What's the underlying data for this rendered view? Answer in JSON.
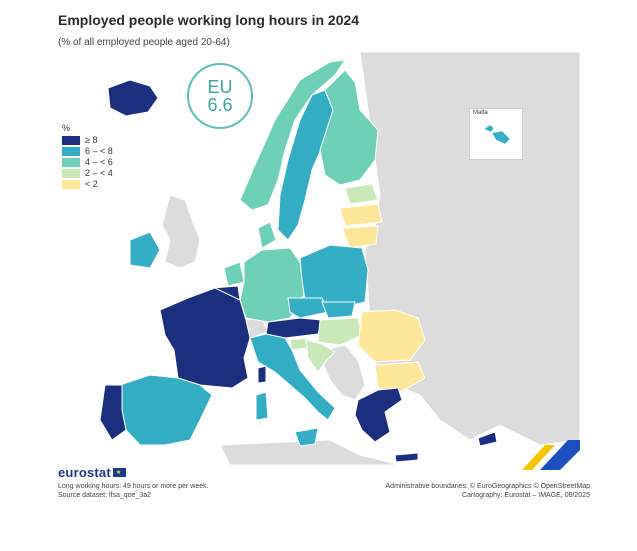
{
  "header": {
    "title": "Employed people working long hours in 2024",
    "subtitle": "(% of all employed people aged 20-64)"
  },
  "eu_badge": {
    "label": "EU",
    "value": "6.6"
  },
  "legend": {
    "unit": "%",
    "classes": [
      {
        "label": "≥ 8",
        "color": "#1b2f7e"
      },
      {
        "label": "6 – < 8",
        "color": "#34aec4"
      },
      {
        "label": "4 – < 6",
        "color": "#6fd0b8"
      },
      {
        "label": "2 – < 4",
        "color": "#c9e8b8"
      },
      {
        "label": "< 2",
        "color": "#fde89a"
      }
    ]
  },
  "inset": {
    "label": "Malta"
  },
  "colors": {
    "non_data_land": "#dcdcdc",
    "border": "#ffffff",
    "accent_yellow": "#f5c400",
    "accent_blue": "#1d4fbf"
  },
  "footer": {
    "logo_text": "eurostat",
    "note": "Long working hours: 49 hours or more per week.",
    "source": "Source dataset: lfsa_qoe_3a2",
    "boundaries": "Administrative boundaries: © EuroGeographics © OpenStreetMap",
    "cartography": "Cartography: Eurostat – IMAGE, 08/2025"
  }
}
